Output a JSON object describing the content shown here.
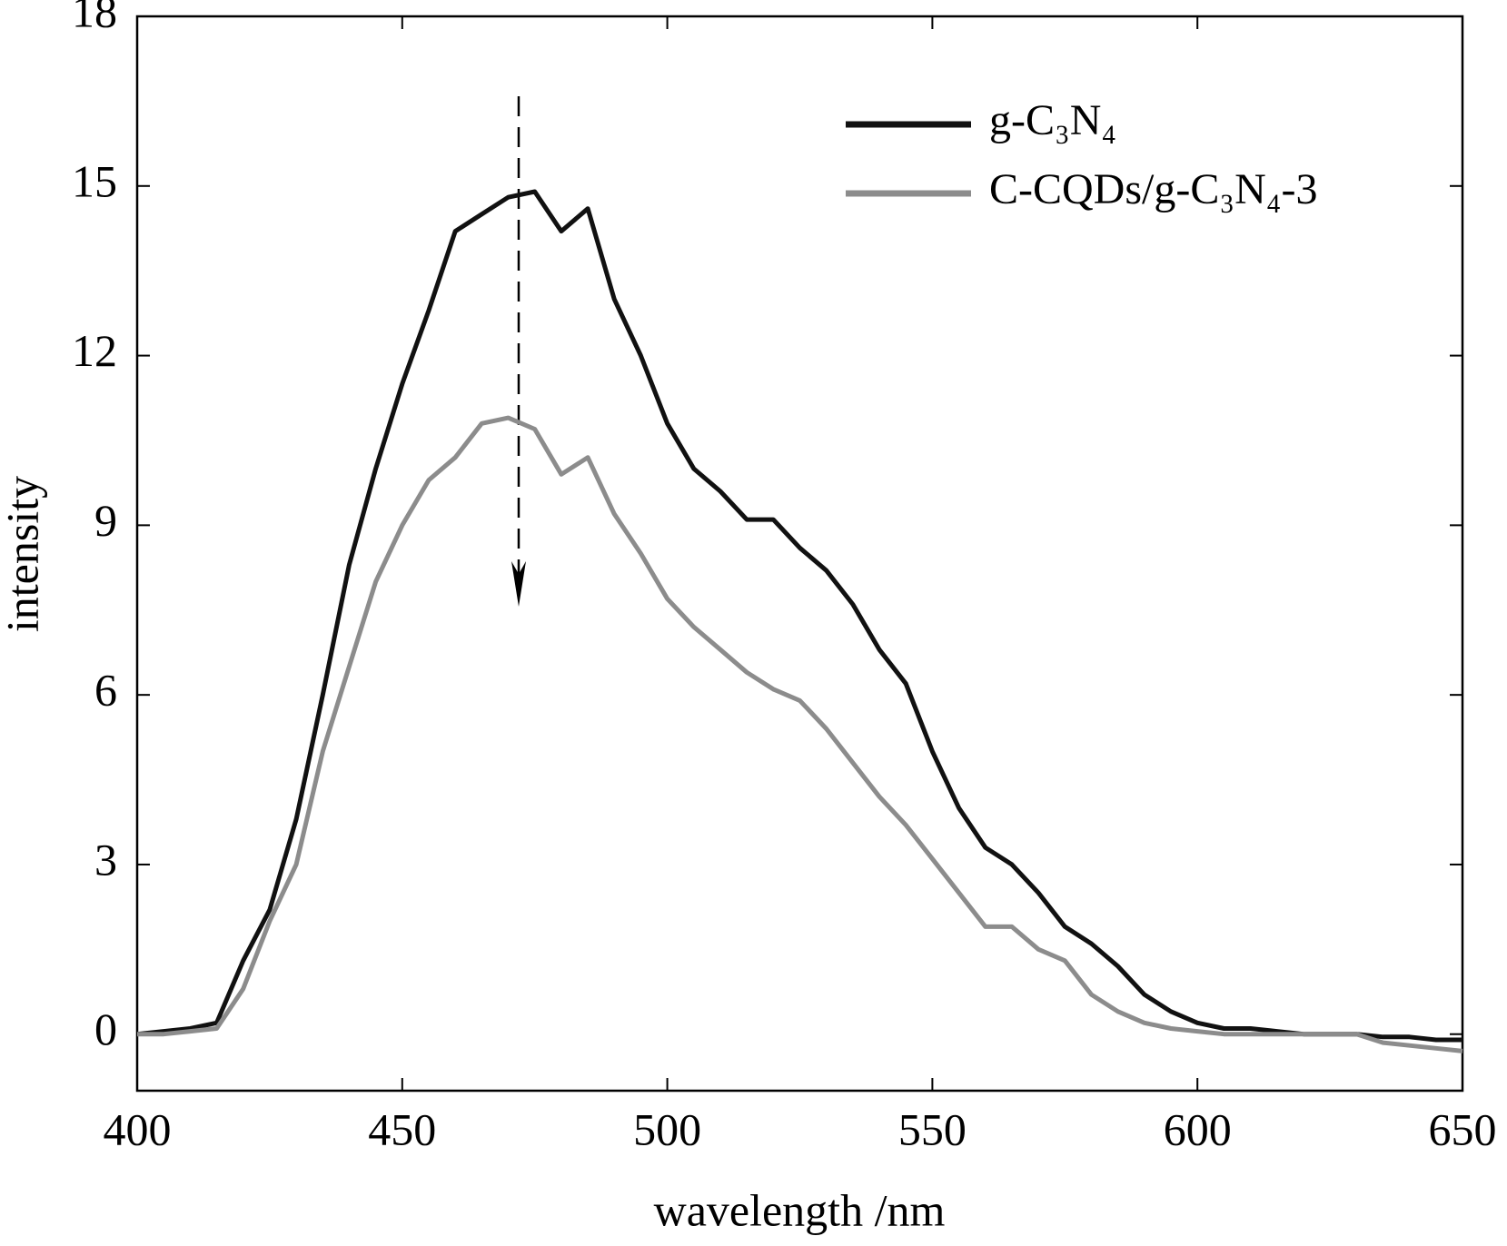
{
  "chart_data": {
    "type": "line",
    "x_label": "wavelength /nm",
    "y_label": "intensity",
    "x": [
      400,
      405,
      410,
      415,
      420,
      425,
      430,
      435,
      440,
      445,
      450,
      455,
      460,
      465,
      470,
      475,
      480,
      485,
      490,
      495,
      500,
      505,
      510,
      515,
      520,
      525,
      530,
      535,
      540,
      545,
      550,
      555,
      560,
      565,
      570,
      575,
      580,
      585,
      590,
      595,
      600,
      605,
      610,
      615,
      620,
      625,
      630,
      635,
      640,
      645,
      650
    ],
    "series": [
      {
        "name": "g-C₃N₄",
        "color": "#111111",
        "values": [
          0,
          0.05,
          0.1,
          0.2,
          1.3,
          2.2,
          3.8,
          6.0,
          8.3,
          10.0,
          11.5,
          12.8,
          14.2,
          14.5,
          14.8,
          14.9,
          14.2,
          14.6,
          13.0,
          12.0,
          10.8,
          10.0,
          9.6,
          9.1,
          9.1,
          8.6,
          8.2,
          7.6,
          6.8,
          6.2,
          5.0,
          4.0,
          3.3,
          3.0,
          2.5,
          1.9,
          1.6,
          1.2,
          0.7,
          0.4,
          0.2,
          0.1,
          0.1,
          0.05,
          0,
          0,
          0,
          -0.05,
          -0.05,
          -0.1,
          -0.1
        ]
      },
      {
        "name": "C-CQDs/g-C₃N₄-3",
        "color": "#8c8c8c",
        "values": [
          0,
          0,
          0.05,
          0.1,
          0.8,
          2.0,
          3.0,
          5.0,
          6.5,
          8.0,
          9.0,
          9.8,
          10.2,
          10.8,
          10.9,
          10.7,
          9.9,
          10.2,
          9.2,
          8.5,
          7.7,
          7.2,
          6.8,
          6.4,
          6.1,
          5.9,
          5.4,
          4.8,
          4.2,
          3.7,
          3.1,
          2.5,
          1.9,
          1.9,
          1.5,
          1.3,
          0.7,
          0.4,
          0.2,
          0.1,
          0.05,
          0,
          0,
          0,
          0,
          0,
          0,
          -0.15,
          -0.2,
          -0.25,
          -0.3
        ]
      }
    ],
    "xlim": [
      400,
      650
    ],
    "xticks": [
      400,
      450,
      500,
      550,
      600,
      650
    ],
    "ylim": [
      -1,
      18
    ],
    "yticks": [
      0,
      3,
      6,
      9,
      12,
      15,
      18
    ],
    "grid": false,
    "legend": "upper right"
  }
}
